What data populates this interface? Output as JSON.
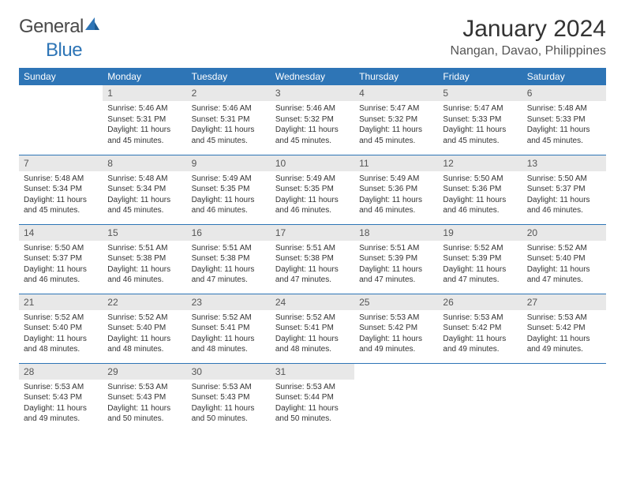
{
  "brand": {
    "part1": "General",
    "part2": "Blue",
    "sail_color": "#2e75b6",
    "text_color": "#4a4a4a"
  },
  "title": {
    "month": "January 2024",
    "location": "Nangan, Davao, Philippines"
  },
  "colors": {
    "header_bg": "#2e75b6",
    "header_fg": "#ffffff",
    "daynum_bg": "#e8e8e8",
    "rule": "#2e75b6"
  },
  "fonts": {
    "title_pt": 30,
    "location_pt": 16,
    "dayhead_pt": 12,
    "body_pt": 10
  },
  "day_headers": [
    "Sunday",
    "Monday",
    "Tuesday",
    "Wednesday",
    "Thursday",
    "Friday",
    "Saturday"
  ],
  "weeks": [
    [
      {
        "n": "",
        "sr": "",
        "ss": "",
        "dl": ""
      },
      {
        "n": "1",
        "sr": "5:46 AM",
        "ss": "5:31 PM",
        "dl": "11 hours and 45 minutes."
      },
      {
        "n": "2",
        "sr": "5:46 AM",
        "ss": "5:31 PM",
        "dl": "11 hours and 45 minutes."
      },
      {
        "n": "3",
        "sr": "5:46 AM",
        "ss": "5:32 PM",
        "dl": "11 hours and 45 minutes."
      },
      {
        "n": "4",
        "sr": "5:47 AM",
        "ss": "5:32 PM",
        "dl": "11 hours and 45 minutes."
      },
      {
        "n": "5",
        "sr": "5:47 AM",
        "ss": "5:33 PM",
        "dl": "11 hours and 45 minutes."
      },
      {
        "n": "6",
        "sr": "5:48 AM",
        "ss": "5:33 PM",
        "dl": "11 hours and 45 minutes."
      }
    ],
    [
      {
        "n": "7",
        "sr": "5:48 AM",
        "ss": "5:34 PM",
        "dl": "11 hours and 45 minutes."
      },
      {
        "n": "8",
        "sr": "5:48 AM",
        "ss": "5:34 PM",
        "dl": "11 hours and 45 minutes."
      },
      {
        "n": "9",
        "sr": "5:49 AM",
        "ss": "5:35 PM",
        "dl": "11 hours and 46 minutes."
      },
      {
        "n": "10",
        "sr": "5:49 AM",
        "ss": "5:35 PM",
        "dl": "11 hours and 46 minutes."
      },
      {
        "n": "11",
        "sr": "5:49 AM",
        "ss": "5:36 PM",
        "dl": "11 hours and 46 minutes."
      },
      {
        "n": "12",
        "sr": "5:50 AM",
        "ss": "5:36 PM",
        "dl": "11 hours and 46 minutes."
      },
      {
        "n": "13",
        "sr": "5:50 AM",
        "ss": "5:37 PM",
        "dl": "11 hours and 46 minutes."
      }
    ],
    [
      {
        "n": "14",
        "sr": "5:50 AM",
        "ss": "5:37 PM",
        "dl": "11 hours and 46 minutes."
      },
      {
        "n": "15",
        "sr": "5:51 AM",
        "ss": "5:38 PM",
        "dl": "11 hours and 46 minutes."
      },
      {
        "n": "16",
        "sr": "5:51 AM",
        "ss": "5:38 PM",
        "dl": "11 hours and 47 minutes."
      },
      {
        "n": "17",
        "sr": "5:51 AM",
        "ss": "5:38 PM",
        "dl": "11 hours and 47 minutes."
      },
      {
        "n": "18",
        "sr": "5:51 AM",
        "ss": "5:39 PM",
        "dl": "11 hours and 47 minutes."
      },
      {
        "n": "19",
        "sr": "5:52 AM",
        "ss": "5:39 PM",
        "dl": "11 hours and 47 minutes."
      },
      {
        "n": "20",
        "sr": "5:52 AM",
        "ss": "5:40 PM",
        "dl": "11 hours and 47 minutes."
      }
    ],
    [
      {
        "n": "21",
        "sr": "5:52 AM",
        "ss": "5:40 PM",
        "dl": "11 hours and 48 minutes."
      },
      {
        "n": "22",
        "sr": "5:52 AM",
        "ss": "5:40 PM",
        "dl": "11 hours and 48 minutes."
      },
      {
        "n": "23",
        "sr": "5:52 AM",
        "ss": "5:41 PM",
        "dl": "11 hours and 48 minutes."
      },
      {
        "n": "24",
        "sr": "5:52 AM",
        "ss": "5:41 PM",
        "dl": "11 hours and 48 minutes."
      },
      {
        "n": "25",
        "sr": "5:53 AM",
        "ss": "5:42 PM",
        "dl": "11 hours and 49 minutes."
      },
      {
        "n": "26",
        "sr": "5:53 AM",
        "ss": "5:42 PM",
        "dl": "11 hours and 49 minutes."
      },
      {
        "n": "27",
        "sr": "5:53 AM",
        "ss": "5:42 PM",
        "dl": "11 hours and 49 minutes."
      }
    ],
    [
      {
        "n": "28",
        "sr": "5:53 AM",
        "ss": "5:43 PM",
        "dl": "11 hours and 49 minutes."
      },
      {
        "n": "29",
        "sr": "5:53 AM",
        "ss": "5:43 PM",
        "dl": "11 hours and 50 minutes."
      },
      {
        "n": "30",
        "sr": "5:53 AM",
        "ss": "5:43 PM",
        "dl": "11 hours and 50 minutes."
      },
      {
        "n": "31",
        "sr": "5:53 AM",
        "ss": "5:44 PM",
        "dl": "11 hours and 50 minutes."
      },
      {
        "n": "",
        "sr": "",
        "ss": "",
        "dl": ""
      },
      {
        "n": "",
        "sr": "",
        "ss": "",
        "dl": ""
      },
      {
        "n": "",
        "sr": "",
        "ss": "",
        "dl": ""
      }
    ]
  ],
  "labels": {
    "sunrise": "Sunrise: ",
    "sunset": "Sunset: ",
    "daylight": "Daylight: "
  }
}
